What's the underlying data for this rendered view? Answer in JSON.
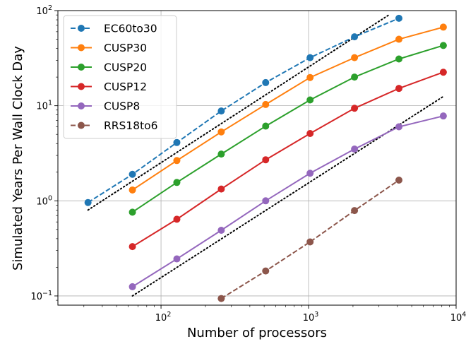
{
  "chart_data": {
    "type": "line",
    "xlabel": "Number of processors",
    "ylabel": "Simulated Years Per Wall Clock Day",
    "xscale": "log",
    "yscale": "log",
    "xlim": [
      20,
      10000
    ],
    "ylim": [
      0.08,
      100
    ],
    "grid": true,
    "legend_position": "upper-left",
    "x_ticks": [
      {
        "base": "10",
        "exp": "2",
        "value": 100
      },
      {
        "base": "10",
        "exp": "3",
        "value": 1000
      },
      {
        "base": "10",
        "exp": "4",
        "value": 10000
      }
    ],
    "y_ticks": [
      {
        "base": "10",
        "exp": "−1",
        "value": 0.1
      },
      {
        "base": "10",
        "exp": "0",
        "value": 1
      },
      {
        "base": "10",
        "exp": "1",
        "value": 10
      },
      {
        "base": "10",
        "exp": "2",
        "value": 100
      }
    ],
    "series": [
      {
        "name": "EC60to30",
        "color": "#1f77b4",
        "dashed": true,
        "x": [
          32,
          64,
          128,
          256,
          512,
          1024,
          2048,
          4096
        ],
        "y": [
          0.96,
          1.9,
          4.1,
          8.8,
          17.5,
          32,
          53,
          83
        ]
      },
      {
        "name": "CUSP30",
        "color": "#ff7f0e",
        "dashed": false,
        "x": [
          64,
          128,
          256,
          512,
          1024,
          2048,
          4096,
          8192
        ],
        "y": [
          1.3,
          2.65,
          5.3,
          10.3,
          19.8,
          32,
          50,
          67
        ]
      },
      {
        "name": "CUSP20",
        "color": "#2ca02c",
        "dashed": false,
        "x": [
          64,
          128,
          256,
          512,
          1024,
          2048,
          4096,
          8192
        ],
        "y": [
          0.76,
          1.56,
          3.1,
          6.1,
          11.5,
          20,
          31,
          43
        ]
      },
      {
        "name": "CUSP12",
        "color": "#d62728",
        "dashed": false,
        "x": [
          64,
          128,
          256,
          512,
          1024,
          2048,
          4096,
          8192
        ],
        "y": [
          0.33,
          0.64,
          1.33,
          2.7,
          5.1,
          9.4,
          15.2,
          22.5
        ]
      },
      {
        "name": "CUSP8",
        "color": "#9467bd",
        "dashed": false,
        "x": [
          64,
          128,
          256,
          512,
          1024,
          2048,
          4096,
          8192
        ],
        "y": [
          0.125,
          0.245,
          0.49,
          1.0,
          1.95,
          3.5,
          6.0,
          7.8
        ]
      },
      {
        "name": "RRS18to6",
        "color": "#8c564b",
        "dashed": true,
        "x": [
          256,
          512,
          1024,
          2048,
          4096
        ],
        "y": [
          0.094,
          0.183,
          0.37,
          0.79,
          1.65
        ]
      }
    ],
    "reference_lines": [
      {
        "color": "#000000",
        "style": "dotted",
        "x": [
          32,
          3500
        ],
        "y": [
          0.8,
          90
        ]
      },
      {
        "color": "#000000",
        "style": "dotted",
        "x": [
          64,
          8192
        ],
        "y": [
          0.1,
          12.5
        ]
      }
    ]
  }
}
